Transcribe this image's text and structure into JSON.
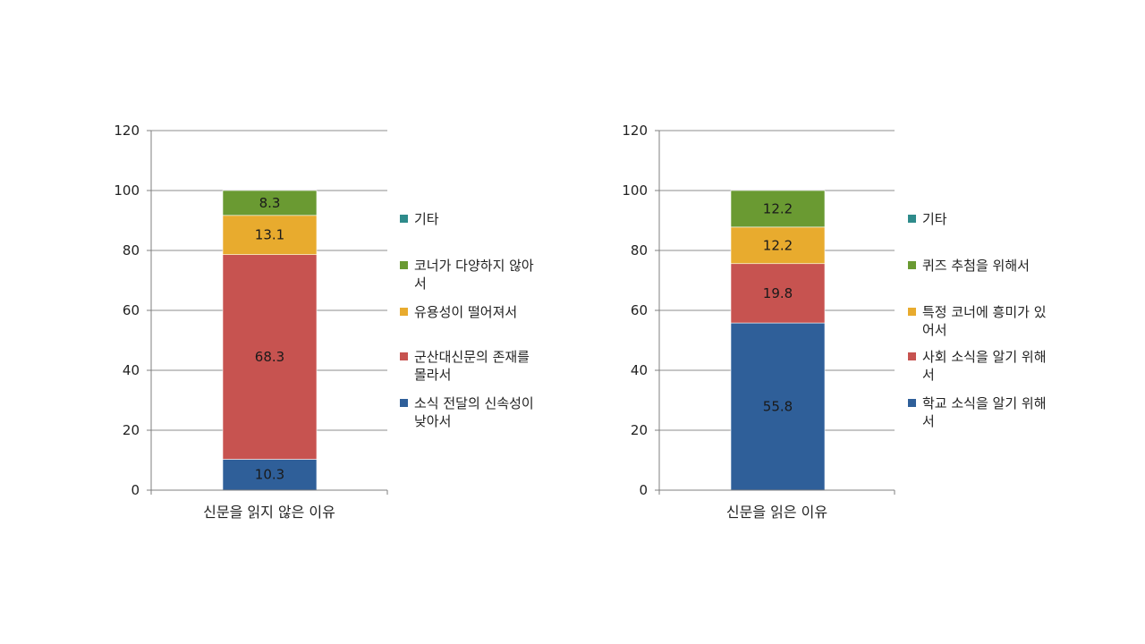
{
  "colors": {
    "etc": "#2e8b8b",
    "green": "#6a9a32",
    "yellow": "#e8ab2e",
    "red": "#c75350",
    "blue": "#2f5f99",
    "axis": "#7f7f7f",
    "grid": "#8c8c8c"
  },
  "chart_data": [
    {
      "type": "bar",
      "stacked": true,
      "categories": [
        "신문을 읽지 않은 이유"
      ],
      "ylim": [
        0,
        120
      ],
      "yticks": [
        0,
        20,
        40,
        60,
        80,
        100,
        120
      ],
      "legend_position": "right",
      "grid": true,
      "series": [
        {
          "name": "소식 전달의 신속성이 낮아서",
          "values": [
            10.3
          ],
          "color": "#2f5f99",
          "label": "10.3"
        },
        {
          "name": "군산대신문의 존재를 몰라서",
          "values": [
            68.3
          ],
          "color": "#c75350",
          "label": "68.3"
        },
        {
          "name": "유용성이 떨어져서",
          "values": [
            13.1
          ],
          "color": "#e8ab2e",
          "label": "13.1"
        },
        {
          "name": "코너가 다양하지 않아서",
          "values": [
            8.3
          ],
          "color": "#6a9a32",
          "label": "8.3"
        },
        {
          "name": "기타",
          "values": [
            0
          ],
          "color": "#2e8b8b",
          "label": ""
        }
      ]
    },
    {
      "type": "bar",
      "stacked": true,
      "categories": [
        "신문을 읽은 이유"
      ],
      "ylim": [
        0,
        120
      ],
      "yticks": [
        0,
        20,
        40,
        60,
        80,
        100,
        120
      ],
      "legend_position": "right",
      "grid": true,
      "series": [
        {
          "name": "학교 소식을 알기 위해서",
          "values": [
            55.8
          ],
          "color": "#2f5f99",
          "label": "55.8"
        },
        {
          "name": "사회 소식을 알기 위해서",
          "values": [
            19.8
          ],
          "color": "#c75350",
          "label": "19.8"
        },
        {
          "name": "특정 코너에 흥미가 있어서",
          "values": [
            12.2
          ],
          "color": "#e8ab2e",
          "label": "12.2"
        },
        {
          "name": "퀴즈 추첨을 위해서",
          "values": [
            12.2
          ],
          "color": "#6a9a32",
          "label": "12.2"
        },
        {
          "name": "기타",
          "values": [
            0
          ],
          "color": "#2e8b8b",
          "label": ""
        }
      ]
    }
  ]
}
